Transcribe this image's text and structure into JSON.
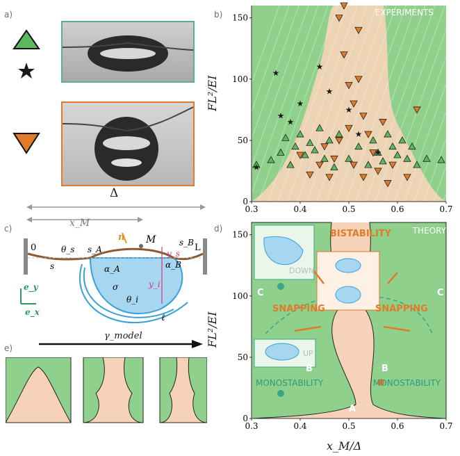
{
  "panels": {
    "a": {
      "letter": "a)"
    },
    "b": {
      "letter": "b)",
      "tag": "EXPERIMENTS"
    },
    "c": {
      "letter": "c)"
    },
    "d": {
      "letter": "d)",
      "tag": "THEORY"
    },
    "e": {
      "letter": "e)"
    }
  },
  "legend": {
    "up_color": "#5cb85c",
    "down_color": "#e07b2a",
    "star_color": "#1a1a1a"
  },
  "delta_label": "Δ",
  "xm_label": "x_M",
  "schematic": {
    "zero": "0",
    "L": "L",
    "n": "n",
    "M": "M",
    "ys": "y_s",
    "sB": "s_B",
    "thetaS": "θ_s",
    "sA": "s_A",
    "s": "s",
    "alphaA": "α_A",
    "alphaB": "α_B",
    "yi": "y_i",
    "sigma": "σ",
    "thetaI": "θ_i",
    "ell": "ℓ",
    "ey": "e_y",
    "ex": "e_x"
  },
  "gamma_label": "γ_model",
  "axes": {
    "y_ticks": [
      "0",
      "50",
      "100",
      "150"
    ],
    "x_ticks": [
      "0.3",
      "0.4",
      "0.5",
      "0.6",
      "0.7"
    ],
    "ylabel": "FL²/EI",
    "xlabel": "x_M/Δ"
  },
  "theory": {
    "bistability": "BISTABILITY",
    "snapping_left": "SNAPPING",
    "snapping_right": "SNAPPING",
    "monostability_left": "MONOSTABILITY",
    "monostability_right": "MONOSTABILITY",
    "down": "DOWN",
    "up": "UP",
    "A": "A",
    "B_left": "B",
    "B_right": "B",
    "C_left": "C",
    "C_right": "C"
  },
  "colors": {
    "green": "#8fd18c",
    "peach": "#f6d3b8",
    "orange": "#e07b2a",
    "teal": "#3aa58a",
    "blue": "#3aa0d8"
  },
  "chart_data": {
    "type": "scatter",
    "xlim": [
      0.3,
      0.7
    ],
    "ylim": [
      0,
      160
    ],
    "xlabel": "x_M/Δ",
    "ylabel": "FL²/EI",
    "series": [
      {
        "values": [
          [
            0.31,
            30
          ],
          [
            0.34,
            34
          ],
          [
            0.36,
            40
          ],
          [
            0.37,
            52
          ],
          [
            0.38,
            30
          ],
          [
            0.39,
            45
          ],
          [
            0.4,
            55
          ],
          [
            0.41,
            38
          ],
          [
            0.42,
            48
          ],
          [
            0.43,
            42
          ],
          [
            0.44,
            60
          ],
          [
            0.45,
            35
          ],
          [
            0.46,
            50
          ],
          [
            0.47,
            28
          ],
          [
            0.48,
            55
          ],
          [
            0.5,
            35
          ],
          [
            0.52,
            45
          ],
          [
            0.54,
            30
          ],
          [
            0.55,
            50
          ],
          [
            0.56,
            40
          ],
          [
            0.57,
            33
          ],
          [
            0.58,
            55
          ],
          [
            0.59,
            45
          ],
          [
            0.6,
            38
          ],
          [
            0.61,
            50
          ],
          [
            0.62,
            35
          ],
          [
            0.63,
            45
          ],
          [
            0.64,
            30
          ],
          [
            0.66,
            35
          ],
          [
            0.69,
            34
          ]
        ]
      },
      {
        "values": [
          [
            0.4,
            38
          ],
          [
            0.42,
            22
          ],
          [
            0.44,
            30
          ],
          [
            0.45,
            45
          ],
          [
            0.46,
            20
          ],
          [
            0.47,
            35
          ],
          [
            0.48,
            50
          ],
          [
            0.48,
            150
          ],
          [
            0.49,
            120
          ],
          [
            0.49,
            160
          ],
          [
            0.5,
            95
          ],
          [
            0.5,
            60
          ],
          [
            0.51,
            80
          ],
          [
            0.51,
            30
          ],
          [
            0.52,
            100
          ],
          [
            0.52,
            140
          ],
          [
            0.53,
            70
          ],
          [
            0.53,
            20
          ],
          [
            0.54,
            55
          ],
          [
            0.55,
            40
          ],
          [
            0.56,
            25
          ],
          [
            0.57,
            65
          ],
          [
            0.58,
            15
          ],
          [
            0.59,
            30
          ],
          [
            0.62,
            20
          ],
          [
            0.64,
            75
          ]
        ]
      },
      {
        "values": [
          [
            0.31,
            28
          ],
          [
            0.35,
            105
          ],
          [
            0.36,
            70
          ],
          [
            0.38,
            65
          ],
          [
            0.4,
            80
          ],
          [
            0.44,
            110
          ],
          [
            0.46,
            90
          ],
          [
            0.5,
            75
          ],
          [
            0.52,
            55
          ],
          [
            0.56,
            40
          ]
        ]
      }
    ]
  }
}
